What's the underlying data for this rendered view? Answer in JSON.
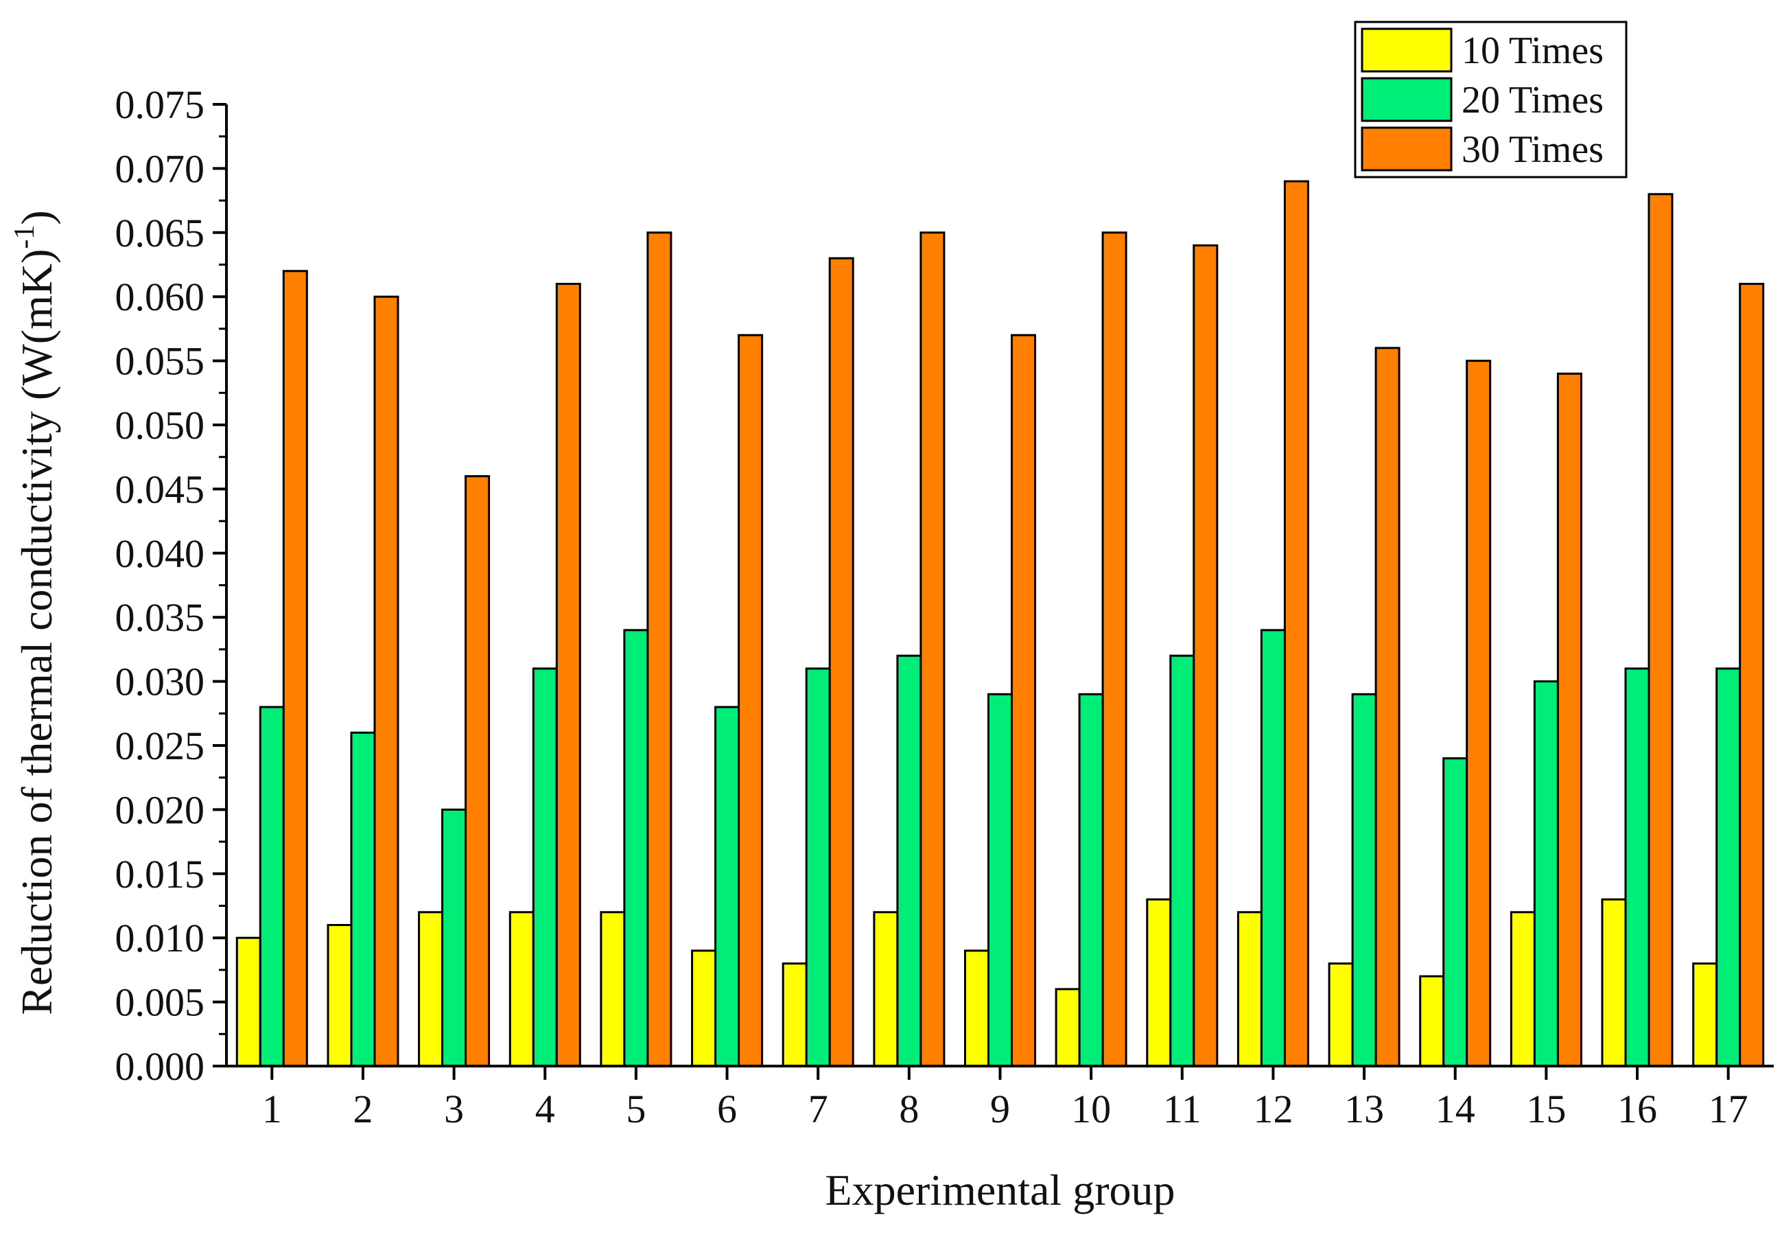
{
  "chart_data": {
    "type": "bar",
    "title": "",
    "xlabel": "Experimental group",
    "ylabel": "Reduction of thermal conductivity (W(mK)",
    "ylabel_superscript": "-1",
    "ylabel_close": ")",
    "categories": [
      "1",
      "2",
      "3",
      "4",
      "5",
      "6",
      "7",
      "8",
      "9",
      "10",
      "11",
      "12",
      "13",
      "14",
      "15",
      "16",
      "17"
    ],
    "ylim": [
      0,
      0.075
    ],
    "yticks": [
      "0.000",
      "0.005",
      "0.010",
      "0.015",
      "0.020",
      "0.025",
      "0.030",
      "0.035",
      "0.040",
      "0.045",
      "0.050",
      "0.055",
      "0.060",
      "0.065",
      "0.070",
      "0.075"
    ],
    "grid": false,
    "legend_position": "top-right",
    "series": [
      {
        "name": "10 Times",
        "color": "#ffff00",
        "values": [
          0.01,
          0.011,
          0.012,
          0.012,
          0.012,
          0.009,
          0.008,
          0.012,
          0.009,
          0.006,
          0.013,
          0.012,
          0.008,
          0.007,
          0.012,
          0.013,
          0.008
        ]
      },
      {
        "name": "20 Times",
        "color": "#00ee77",
        "values": [
          0.028,
          0.026,
          0.02,
          0.031,
          0.034,
          0.028,
          0.031,
          0.032,
          0.029,
          0.029,
          0.032,
          0.034,
          0.029,
          0.024,
          0.03,
          0.031,
          0.031
        ]
      },
      {
        "name": "30 Times",
        "color": "#ff7f00",
        "values": [
          0.062,
          0.06,
          0.046,
          0.061,
          0.065,
          0.057,
          0.063,
          0.065,
          0.057,
          0.065,
          0.064,
          0.069,
          0.056,
          0.055,
          0.054,
          0.068,
          0.061
        ]
      }
    ]
  }
}
